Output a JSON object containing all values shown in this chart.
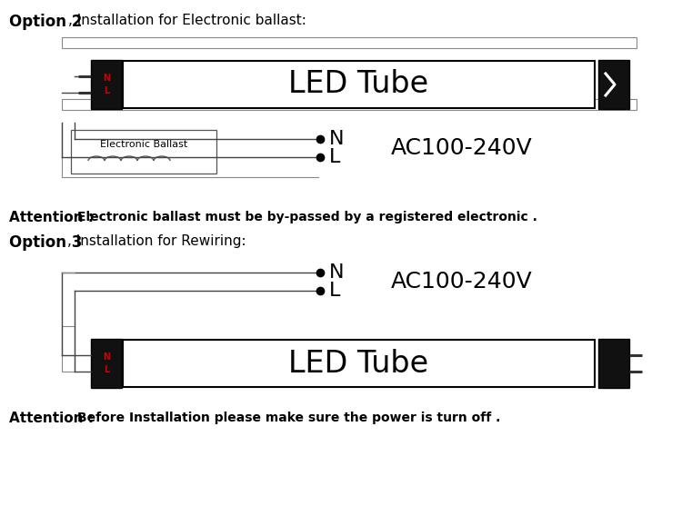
{
  "bg_color": "#ffffff",
  "title1_bold": "Option 2",
  "title1_normal": ", Installation for Electronic ballast:",
  "title2_bold": "Option 3",
  "title2_normal": ", Installation for Rewiring:",
  "attention1_bold": "Attention : ",
  "attention1_normal": "Electronic ballast must be by-passed by a registered electronic .",
  "attention2_bold": "Attention : ",
  "attention2_normal": "Before Installation please make sure the power is turn off .",
  "led_tube_text": "LED Tube",
  "ac_voltage": "AC100-240V",
  "label_N": "N",
  "label_L": "L",
  "ballast_label": "Electronic Ballast",
  "tube_end_color": "#111111",
  "tube_label_color": "#cc0000",
  "wire_color": "#444444",
  "line_color": "#333333"
}
